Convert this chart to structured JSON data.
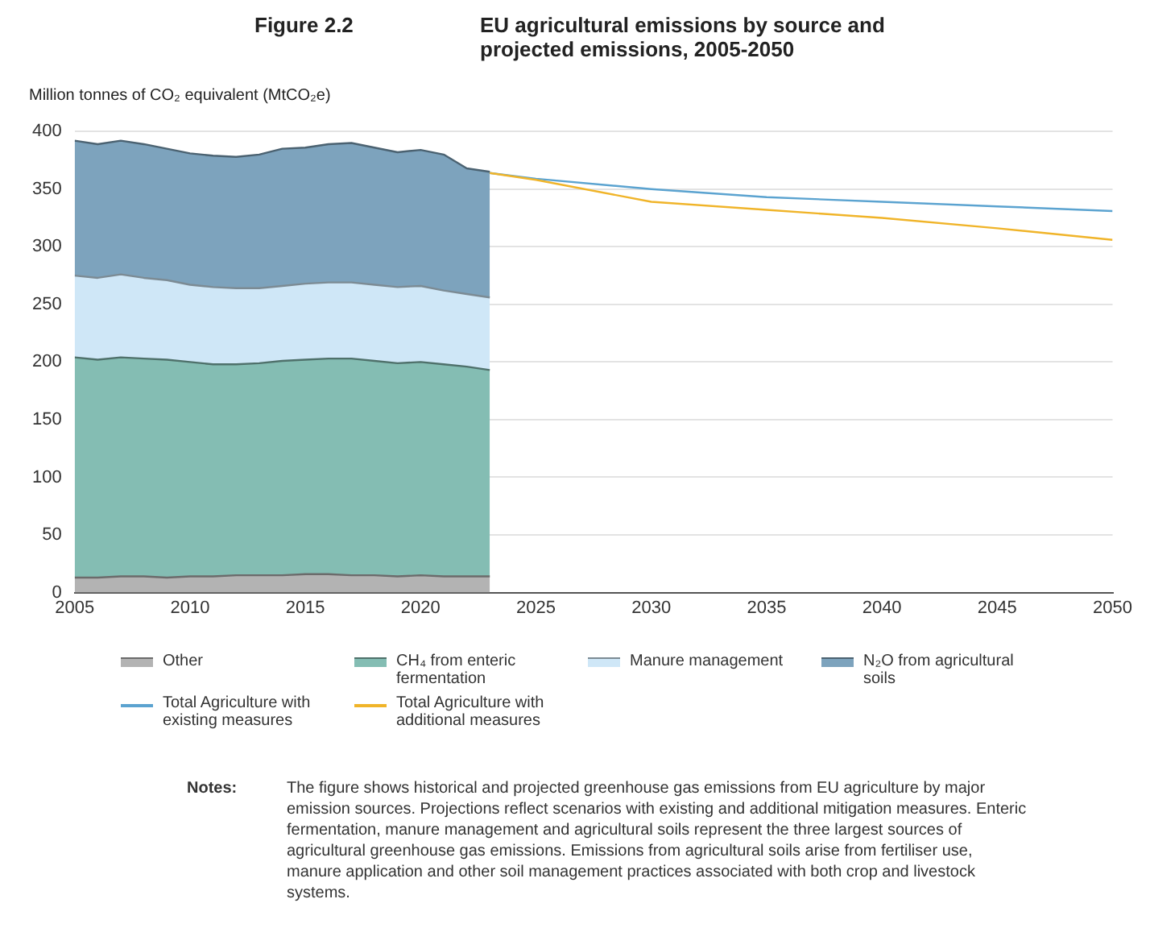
{
  "chart_data": {
    "type": "area",
    "stacked": true,
    "title": "Figure 2.2",
    "subtitle": "EU agricultural emissions by source and projected emissions, 2005-2050",
    "ylabel": "Million tonnes of CO₂ equivalent (MtCO₂e)",
    "x": [
      2005,
      2006,
      2007,
      2008,
      2009,
      2010,
      2011,
      2012,
      2013,
      2014,
      2015,
      2016,
      2017,
      2018,
      2019,
      2020,
      2021,
      2022,
      2023
    ],
    "series": [
      {
        "name": "Other",
        "color": "#b3b3b3",
        "values": [
          13,
          13,
          14,
          14,
          13,
          14,
          14,
          15,
          15,
          15,
          16,
          16,
          15,
          15,
          14,
          15,
          14,
          14,
          14
        ]
      },
      {
        "name": "CH₄ from enteric fermentation",
        "color": "#84bdb3",
        "values": [
          191,
          189,
          190,
          189,
          189,
          186,
          184,
          183,
          184,
          186,
          186,
          187,
          188,
          186,
          185,
          185,
          184,
          182,
          179
        ]
      },
      {
        "name": "Manure management",
        "color": "#cfe7f7",
        "values": [
          71,
          71,
          72,
          70,
          69,
          67,
          67,
          66,
          65,
          65,
          66,
          66,
          66,
          66,
          66,
          66,
          64,
          63,
          63
        ]
      },
      {
        "name": "N₂O from agricultural soils",
        "color": "#7da3bd",
        "values": [
          117,
          116,
          116,
          116,
          114,
          114,
          114,
          114,
          116,
          119,
          118,
          120,
          121,
          119,
          117,
          118,
          118,
          109,
          109
        ]
      },
      {
        "name": "Total Agriculture with existing measures",
        "type": "line",
        "color": "#5ba3d0",
        "x": [
          2023,
          2025,
          2030,
          2035,
          2040,
          2045,
          2050
        ],
        "values": [
          364,
          359,
          350,
          343,
          339,
          335,
          331
        ]
      },
      {
        "name": "Total Agriculture with additional measures",
        "type": "line",
        "color": "#f0b429",
        "x": [
          2023,
          2025,
          2030,
          2035,
          2040,
          2045,
          2050
        ],
        "values": [
          364,
          358,
          339,
          332,
          325,
          316,
          306
        ]
      }
    ],
    "xlim": [
      2005,
      2050
    ],
    "xticks": [
      2005,
      2010,
      2015,
      2020,
      2025,
      2030,
      2035,
      2040,
      2045,
      2050
    ],
    "ylim": [
      0,
      400
    ],
    "yticks": [
      0,
      50,
      100,
      150,
      200,
      250,
      300,
      350,
      400
    ],
    "grid": "y",
    "legend": "bottom",
    "marker": "none",
    "annotations": [
      "Notes:",
      "The figure shows historical and projected greenhouse gas emissions from EU agriculture by major emission sources. Projections reflect scenarios with existing and additional mitigation measures. Enteric fermentation, manure management and agricultural soils represent the three largest sources of agricultural greenhouse gas emissions. Emissions from agricultural soils arise from fertiliser use, manure application and other soil management practices associated with both crop and livestock systems."
    ]
  }
}
